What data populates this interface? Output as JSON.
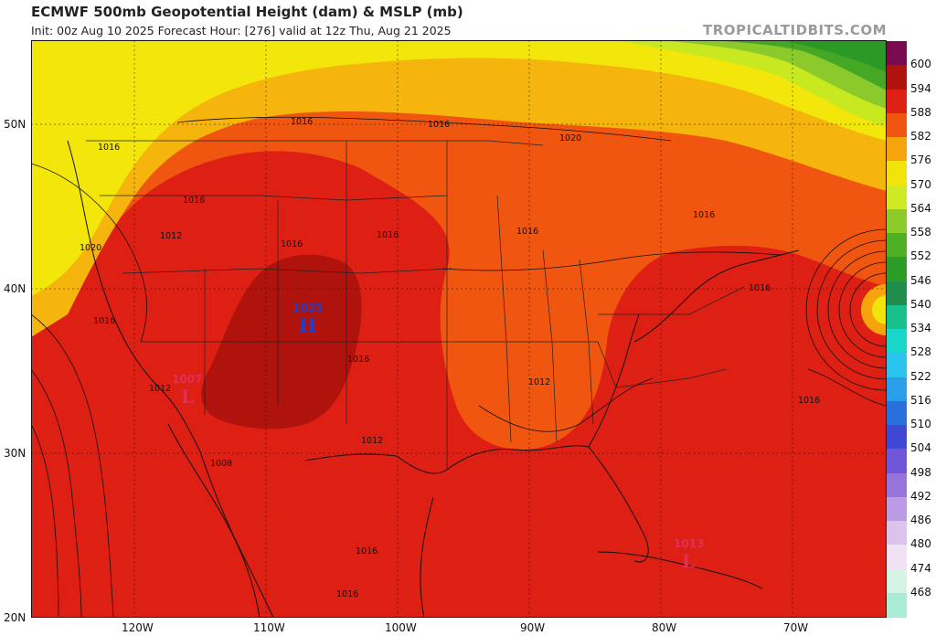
{
  "header": {
    "title": "ECMWF 500mb Geopotential Height (dam) & MSLP (mb)",
    "subtitle": "Init: 00z Aug 10 2025   Forecast Hour: [276]   valid at 12z Thu, Aug 21 2025",
    "brand": "TROPICALTIDBITS.COM"
  },
  "colorbar": {
    "labels": [
      "600",
      "594",
      "588",
      "582",
      "576",
      "570",
      "564",
      "558",
      "552",
      "546",
      "540",
      "534",
      "528",
      "522",
      "516",
      "510",
      "504",
      "498",
      "492",
      "486",
      "480",
      "474",
      "468"
    ],
    "colors": [
      "#7a0a4f",
      "#b0120c",
      "#dd1f14",
      "#f0560f",
      "#f5a40c",
      "#f2e30a",
      "#cdea22",
      "#8ccb2a",
      "#4fb024",
      "#2b9c26",
      "#1f8e4c",
      "#18c08a",
      "#17d7c8",
      "#2ac4ef",
      "#2a9ee8",
      "#2a6fdc",
      "#3f48d2",
      "#6f56d8",
      "#9774dc",
      "#bc9ae4",
      "#dcc2ec",
      "#f0e0f3",
      "#d6f3e6",
      "#a8ecd4"
    ]
  },
  "axes": {
    "lat_labels": [
      "50N",
      "40N",
      "30N",
      "20N"
    ],
    "lon_labels": [
      "120W",
      "110W",
      "100W",
      "90W",
      "80W",
      "70W"
    ]
  },
  "pressure_centers": [
    {
      "value": "1025",
      "letter": "H",
      "type": "high",
      "color": "#1f3fd0"
    },
    {
      "value": "1007",
      "letter": "L",
      "type": "low",
      "color": "#e0305a"
    },
    {
      "value": "1013",
      "letter": "L",
      "type": "low",
      "color": "#e0305a"
    }
  ],
  "isobar_labels": [
    "1016",
    "1016",
    "1020",
    "1016",
    "1016",
    "1016",
    "1012",
    "1020",
    "1016",
    "1016",
    "1016",
    "1016",
    "1012",
    "1016",
    "1016",
    "1012",
    "1012",
    "1008",
    "1016",
    "1016",
    "1016"
  ]
}
